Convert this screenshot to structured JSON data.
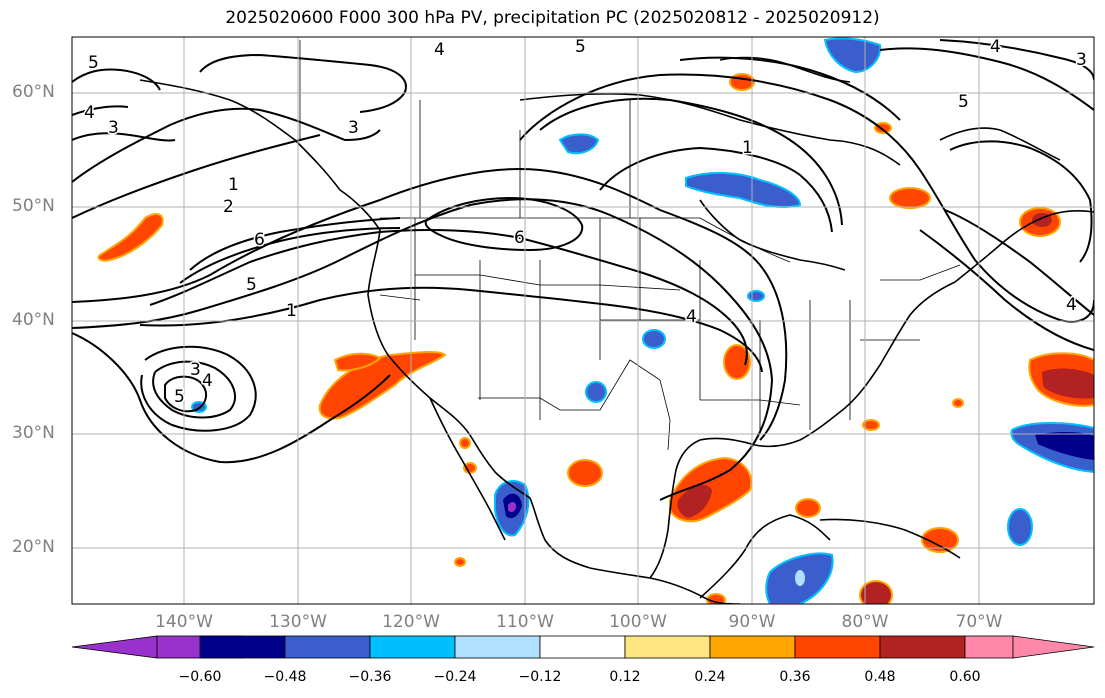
{
  "title": "2025020600 F000 300 hPa PV, precipitation PC (2025020812 - 2025020912)",
  "lat_labels": [
    "60°N",
    "50°N",
    "40°N",
    "30°N",
    "20°N"
  ],
  "lon_labels": [
    "140°W",
    "130°W",
    "120°W",
    "110°W",
    "100°W",
    "90°W",
    "80°W",
    "70°W"
  ],
  "colorbar": {
    "ticks": [
      "−0.60",
      "−0.48",
      "−0.36",
      "−0.24",
      "−0.12",
      "0.12",
      "0.24",
      "0.36",
      "0.48",
      "0.60"
    ],
    "colors": [
      "#9932cc",
      "#00008b",
      "#3a5fcd",
      "#00bfff",
      "#b0e0ff",
      "#ffffff",
      "#ffe680",
      "#ffa500",
      "#ff4500",
      "#b22222",
      "#ff88aa"
    ]
  },
  "contour_labels": [
    "5",
    "4",
    "3",
    "4",
    "5",
    "4",
    "3",
    "1",
    "2",
    "6",
    "5",
    "1",
    "6",
    "4",
    "1",
    "5",
    "3",
    "4",
    "3",
    "5",
    "4"
  ],
  "map": {
    "projection": "PlateCarree",
    "extent_lon": [
      -150,
      -60
    ],
    "extent_lat": [
      15,
      65
    ],
    "colors": {
      "land_outline": "#000000",
      "grid": "#b0b0b0",
      "contour": "#000000"
    }
  }
}
